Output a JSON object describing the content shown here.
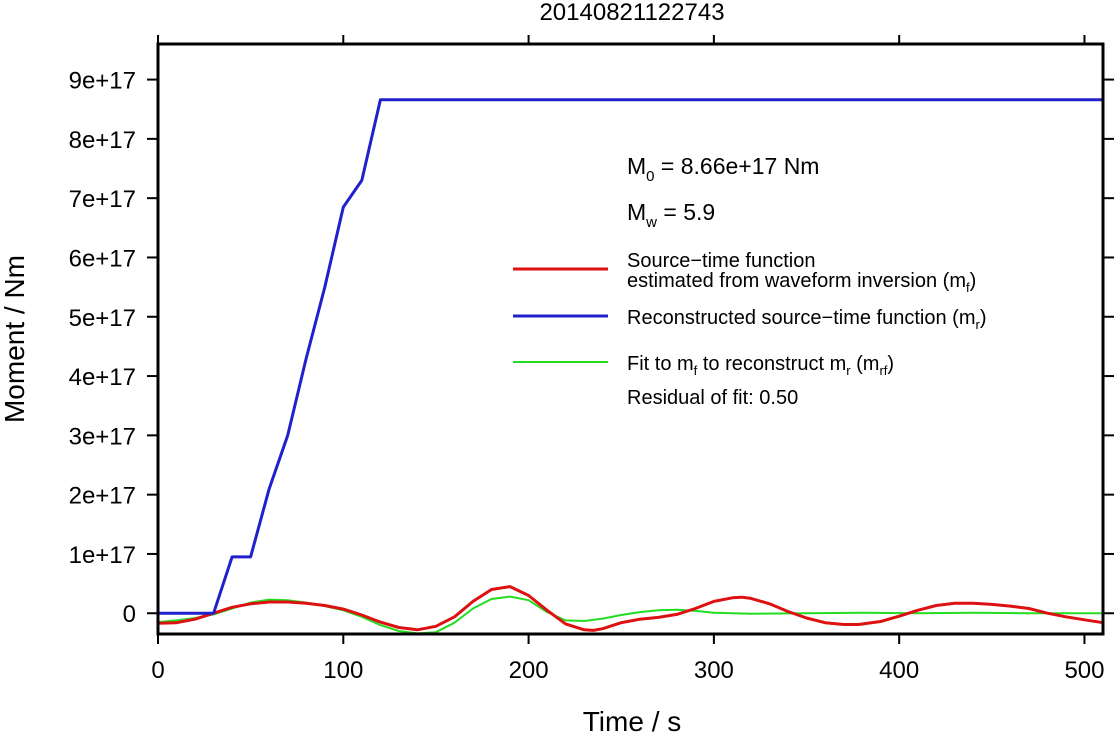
{
  "chart_data": {
    "type": "line",
    "title": "20140821122743",
    "xlabel": "Time / s",
    "ylabel": "Moment / Nm",
    "xlim": [
      0,
      510
    ],
    "ylim": [
      -3.5e+16,
      9.6e+17
    ],
    "x_ticks": [
      0,
      100,
      200,
      300,
      400,
      500
    ],
    "x_tick_labels": [
      "0",
      "100",
      "200",
      "300",
      "400",
      "500"
    ],
    "y_ticks": [
      0,
      1e+17,
      2e+17,
      3e+17,
      4e+17,
      5e+17,
      6e+17,
      7e+17,
      8e+17,
      9e+17
    ],
    "y_tick_labels": [
      "0",
      "1e+17",
      "2e+17",
      "3e+17",
      "4e+17",
      "5e+17",
      "6e+17",
      "7e+17",
      "8e+17",
      "9e+17"
    ],
    "grid": false,
    "legend_placement": "right",
    "annotations": {
      "m0_base": "M",
      "m0_sub": "0",
      "m0_rest": " = 8.66e+17 Nm",
      "mw_base": "M",
      "mw_sub": "w",
      "mw_rest": " = 5.9",
      "residual": "Residual of fit: 0.50"
    },
    "legend_labels": {
      "red_line1": "Source−time function",
      "red_line2": "estimated from waveform inversion (m",
      "red_sub": "f",
      "red_end": ")",
      "blue_text": "Reconstructed source−time function (m",
      "blue_sub": "r",
      "blue_end": ")",
      "green_text1": "Fit to m",
      "green_sub1": "f",
      "green_text2": " to reconstruct m",
      "green_sub2": "r",
      "green_text3": " (m",
      "green_sub3": "rf",
      "green_end": ")"
    },
    "series": [
      {
        "color": "#2020cc",
        "x": [
          0,
          30,
          40,
          50,
          60,
          70,
          80,
          90,
          100,
          110,
          120,
          510
        ],
        "y": [
          0,
          0,
          9.5e+16,
          9.5e+16,
          2.1e+17,
          3e+17,
          4.3e+17,
          5.5e+17,
          6.85e+17,
          7.3e+17,
          8.66e+17,
          8.66e+17
        ]
      },
      {
        "color": "#dd1111",
        "x": [
          0,
          10,
          20,
          30,
          40,
          50,
          60,
          70,
          80,
          90,
          100,
          110,
          120,
          130,
          140,
          150,
          160,
          170,
          180,
          190,
          200,
          210,
          220,
          230,
          235,
          240,
          250,
          260,
          270,
          280,
          290,
          300,
          310,
          315,
          320,
          330,
          340,
          350,
          360,
          370,
          378,
          390,
          400,
          410,
          420,
          430,
          440,
          450,
          460,
          470,
          480,
          490,
          500,
          510
        ],
        "y": [
          -1.7e+16,
          -1.6e+16,
          -1e+16,
          0,
          1e+16,
          1.6e+16,
          1.9e+16,
          1.9e+16,
          1.7e+16,
          1.3e+16,
          7000000000000000.0,
          -3000000000000000.0,
          -1.5e+16,
          -2.4e+16,
          -2.8e+16,
          -2.2e+16,
          -6000000000000000.0,
          2e+16,
          4e+16,
          4.5e+16,
          3e+16,
          5000000000000000.0,
          -1.8e+16,
          -2.8e+16,
          -2.9e+16,
          -2.6e+16,
          -1.6e+16,
          -1e+16,
          -7000000000000000.0,
          -2000000000000000.0,
          8000000000000000.0,
          2e+16,
          2.6e+16,
          2.7e+16,
          2.5e+16,
          1.6e+16,
          3000000000000000.0,
          -8000000000000000.0,
          -1.6e+16,
          -1.9e+16,
          -1.9e+16,
          -1.4e+16,
          -5000000000000000.0,
          5000000000000000.0,
          1.3e+16,
          1.7e+16,
          1.7e+16,
          1.5e+16,
          1.2e+16,
          8000000000000000.0,
          0,
          -6000000000000000.0,
          -1.1e+16,
          -1.6e+16
        ]
      },
      {
        "color": "#22dd22",
        "x": [
          0,
          10,
          20,
          30,
          40,
          50,
          60,
          70,
          80,
          90,
          100,
          110,
          120,
          130,
          140,
          150,
          160,
          170,
          180,
          190,
          200,
          210,
          220,
          230,
          240,
          250,
          260,
          270,
          280,
          290,
          300,
          320,
          350,
          380,
          410,
          440,
          470,
          510
        ],
        "y": [
          -1.5e+16,
          -1.2e+16,
          -8000000000000000.0,
          -2000000000000000.0,
          8000000000000000.0,
          1.8e+16,
          2.3e+16,
          2.2e+16,
          1.8e+16,
          1.2e+16,
          5000000000000000.0,
          -6000000000000000.0,
          -2e+16,
          -3e+16,
          -3.4e+16,
          -3.2e+16,
          -1.6e+16,
          8000000000000000.0,
          2.4e+16,
          2.8e+16,
          2.2e+16,
          2000000000000000.0,
          -1.2e+16,
          -1.3e+16,
          -9000000000000000.0,
          -3000000000000000.0,
          2000000000000000.0,
          5000000000000000.0,
          6000000000000000.0,
          4000000000000000.0,
          1000000000000000.0,
          -1000000000000000.0,
          0,
          1000000000000000.0,
          0,
          1000000000000000.0,
          0,
          0
        ]
      }
    ]
  }
}
